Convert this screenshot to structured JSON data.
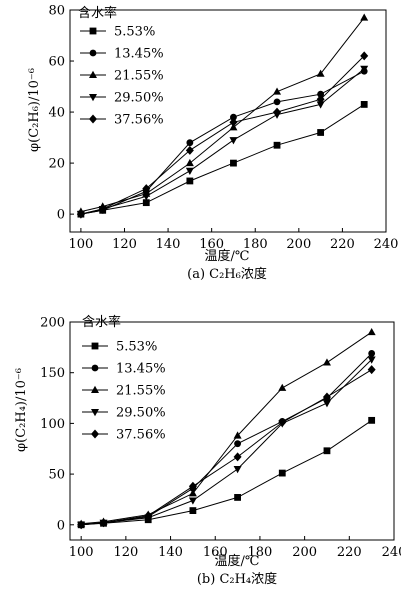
{
  "figure": {
    "caption_a": "(a)  C₂H₆浓度",
    "caption_b": "(b)  C₂H₄浓度"
  },
  "chart_data": [
    {
      "type": "line",
      "xlabel": "温度/℃",
      "ylabel": "φ(C₂H₆)/10⁻⁶",
      "xlim": [
        95,
        240
      ],
      "ylim": [
        -7,
        80
      ],
      "xticks": [
        100,
        120,
        140,
        160,
        180,
        200,
        220,
        240
      ],
      "yticks": [
        0,
        20,
        40,
        60,
        80
      ],
      "legend_title": "含水率",
      "legend_position": "top-left",
      "x": [
        100,
        110,
        130,
        150,
        170,
        190,
        210,
        230
      ],
      "series": [
        {
          "name": "5.53%",
          "marker": "square",
          "values": [
            0,
            1.5,
            4.5,
            13,
            20,
            27,
            32,
            43
          ]
        },
        {
          "name": "13.45%",
          "marker": "circle",
          "values": [
            0,
            1.5,
            9,
            28,
            38,
            44,
            47,
            56
          ]
        },
        {
          "name": "21.55%",
          "marker": "triangle-up",
          "values": [
            1,
            3,
            8,
            20,
            34,
            48,
            55,
            77
          ]
        },
        {
          "name": "29.50%",
          "marker": "triangle-down",
          "values": [
            0,
            2,
            7,
            17,
            29,
            39,
            43,
            57
          ]
        },
        {
          "name": "37.56%",
          "marker": "diamond",
          "values": [
            0,
            2,
            10,
            25,
            36,
            40,
            45,
            62
          ]
        }
      ],
      "grid": false
    },
    {
      "type": "line",
      "xlabel": "温度/℃",
      "ylabel": "φ(C₂H₄)/10⁻⁶",
      "xlim": [
        95,
        240
      ],
      "ylim": [
        -15,
        200
      ],
      "xticks": [
        100,
        120,
        140,
        160,
        180,
        200,
        220,
        240
      ],
      "yticks": [
        0,
        50,
        100,
        150,
        200
      ],
      "legend_title": "含水率",
      "legend_position": "top-left",
      "x": [
        100,
        110,
        130,
        150,
        170,
        190,
        210,
        230
      ],
      "series": [
        {
          "name": "5.53%",
          "marker": "square",
          "values": [
            0,
            1.5,
            5,
            14,
            27,
            51,
            73,
            103
          ]
        },
        {
          "name": "13.45%",
          "marker": "circle",
          "values": [
            0,
            2,
            8,
            36,
            80,
            102,
            125,
            169
          ]
        },
        {
          "name": "21.55%",
          "marker": "triangle-up",
          "values": [
            1,
            3,
            10,
            31,
            88,
            135,
            160,
            190
          ]
        },
        {
          "name": "29.50%",
          "marker": "triangle-down",
          "values": [
            0,
            2,
            7,
            24,
            55,
            100,
            120,
            163
          ]
        },
        {
          "name": "37.56%",
          "marker": "diamond",
          "values": [
            0,
            2,
            9,
            38,
            67,
            101,
            126,
            153
          ]
        }
      ],
      "grid": false
    }
  ]
}
